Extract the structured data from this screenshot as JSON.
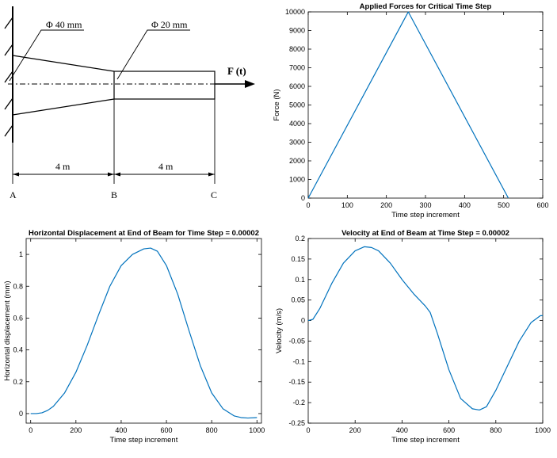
{
  "diagram": {
    "dim_left": "Φ 40 mm",
    "dim_right": "Φ 20 mm",
    "force_label": "F (t)",
    "len_ab": "4 m",
    "len_bc": "4 m",
    "points": [
      "A",
      "B",
      "C"
    ]
  },
  "chart_data": [
    {
      "id": "force",
      "type": "line",
      "title": "Applied Forces for Critical Time Step",
      "xlabel": "Time step increment",
      "ylabel": "Force (N)",
      "xlim": [
        0,
        600
      ],
      "ylim": [
        0,
        10000
      ],
      "xticks": [
        0,
        100,
        200,
        300,
        400,
        500,
        600
      ],
      "yticks": [
        0,
        1000,
        2000,
        3000,
        4000,
        5000,
        6000,
        7000,
        8000,
        9000,
        10000
      ],
      "series": [
        {
          "name": "Force",
          "color": "#0072BD",
          "x": [
            0,
            256,
            512
          ],
          "y": [
            0,
            10000,
            0
          ]
        }
      ]
    },
    {
      "id": "disp",
      "type": "line",
      "title": "Horizontal Displacement at End of Beam for Time Step = 0.00002",
      "xlabel": "Time step increment",
      "ylabel": "Horizontal displacement (mm)",
      "xlim": [
        -20,
        1020
      ],
      "ylim": [
        -0.06,
        1.1
      ],
      "xticks": [
        0,
        200,
        400,
        600,
        800,
        1000
      ],
      "yticks": [
        0,
        0.2,
        0.4,
        0.6,
        0.8,
        1
      ],
      "series": [
        {
          "name": "Displacement",
          "color": "#0072BD",
          "x": [
            0,
            25,
            50,
            75,
            100,
            150,
            200,
            250,
            300,
            350,
            400,
            450,
            500,
            530,
            560,
            600,
            650,
            700,
            750,
            800,
            850,
            900,
            930,
            960,
            1000
          ],
          "y": [
            0,
            0,
            0.005,
            0.02,
            0.045,
            0.13,
            0.26,
            0.43,
            0.62,
            0.8,
            0.93,
            1.0,
            1.035,
            1.04,
            1.02,
            0.93,
            0.75,
            0.52,
            0.3,
            0.13,
            0.03,
            -0.015,
            -0.025,
            -0.028,
            -0.025
          ]
        }
      ]
    },
    {
      "id": "vel",
      "type": "line",
      "title": "Velocity at End of Beam at Time Step = 0.00002",
      "xlabel": "Time step increment",
      "ylabel": "Velocity (m/s)",
      "xlim": [
        0,
        1000
      ],
      "ylim": [
        -0.25,
        0.2
      ],
      "xticks": [
        0,
        200,
        400,
        600,
        800,
        1000
      ],
      "yticks": [
        -0.25,
        -0.2,
        -0.15,
        -0.1,
        -0.05,
        0,
        0.05,
        0.1,
        0.15,
        0.2
      ],
      "ytick_labels": [
        "-0.25",
        "-0.2",
        "-0.15",
        "-0.1",
        "-0.05",
        "0",
        "0.05",
        "0.1",
        "0.15",
        "0.2"
      ],
      "series": [
        {
          "name": "Velocity",
          "color": "#0072BD",
          "x": [
            0,
            20,
            50,
            100,
            150,
            200,
            240,
            270,
            300,
            350,
            400,
            450,
            500,
            520,
            550,
            600,
            650,
            700,
            730,
            760,
            800,
            850,
            900,
            950,
            990,
            1000
          ],
          "y": [
            0,
            0.003,
            0.03,
            0.09,
            0.14,
            0.17,
            0.18,
            0.178,
            0.17,
            0.14,
            0.1,
            0.065,
            0.035,
            0.02,
            -0.03,
            -0.12,
            -0.19,
            -0.215,
            -0.218,
            -0.21,
            -0.17,
            -0.11,
            -0.05,
            -0.005,
            0.012,
            0.012
          ]
        }
      ]
    }
  ]
}
